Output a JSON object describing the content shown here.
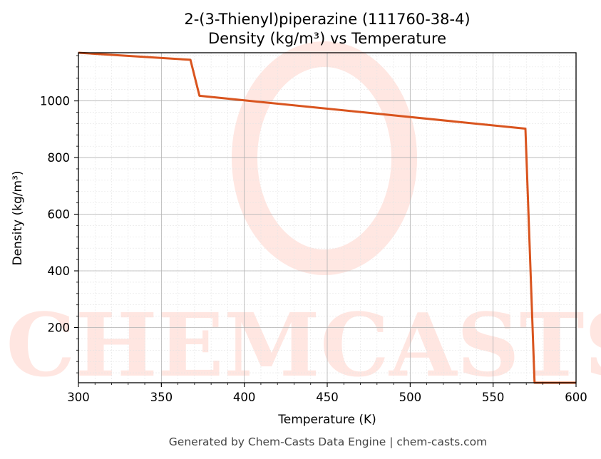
{
  "chart_data": {
    "type": "line",
    "title_line1": "2-(3-Thienyl)piperazine (111760-38-4)",
    "title_line2": "Density (kg/m³) vs Temperature",
    "xlabel": "Temperature (K)",
    "ylabel": "Density (kg/m³)",
    "xlim": [
      300,
      600
    ],
    "ylim": [
      5,
      1170
    ],
    "xticks": [
      300,
      350,
      400,
      450,
      500,
      550,
      600
    ],
    "yticks": [
      200,
      400,
      600,
      800,
      1000
    ],
    "grid": true,
    "series": [
      {
        "color": "#d9541e",
        "x": [
          300,
          367.5,
          373,
          569.5,
          575,
          600
        ],
        "y": [
          1170,
          1145,
          1018,
          902,
          5,
          5
        ]
      }
    ]
  },
  "watermark": "CHEMCASTS",
  "footer": "Generated by Chem-Casts Data Engine | chem-casts.com"
}
